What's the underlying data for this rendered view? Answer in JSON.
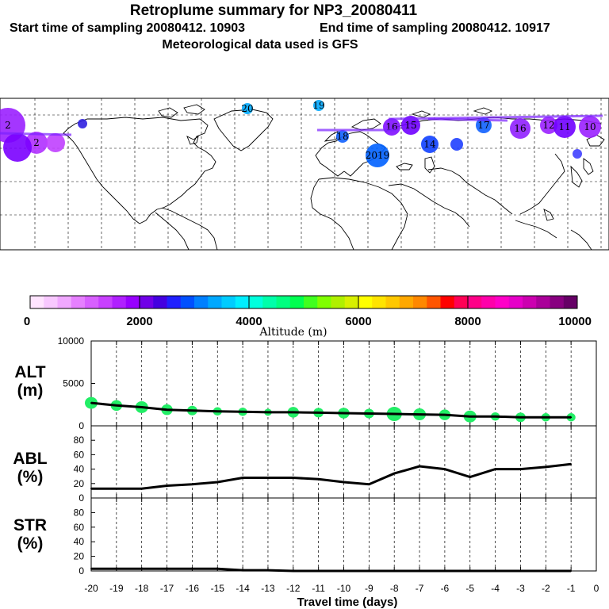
{
  "header": {
    "title": "Retroplume summary for NP3_20080411",
    "start_label": "Start time of sampling 20080412. 10903",
    "end_label": "End time of sampling 20080412. 10917",
    "met_label": "Meteorological data used is GFS"
  },
  "colorbar": {
    "colors": [
      "#ffe4ff",
      "#f8c8ff",
      "#f0a8ff",
      "#e680ff",
      "#d860ff",
      "#c840ff",
      "#b020ff",
      "#9800ff",
      "#7000e8",
      "#4400e0",
      "#2020ff",
      "#0050ff",
      "#0080ff",
      "#00a8ff",
      "#00ccff",
      "#00eeff",
      "#00ffdd",
      "#00ffaa",
      "#00ff80",
      "#00ff50",
      "#40ff20",
      "#80ff00",
      "#b0f000",
      "#d8f000",
      "#ffff00",
      "#ffe400",
      "#ffc800",
      "#ffa800",
      "#ff8800",
      "#ff5500",
      "#ff0000",
      "#ff0055",
      "#ff0088",
      "#ff00aa",
      "#ff00c8",
      "#e600c8",
      "#cc00b0",
      "#aa0099",
      "#880080",
      "#660066"
    ],
    "tick_labels": [
      "0",
      "2000",
      "4000",
      "6000",
      "8000",
      "10000"
    ],
    "label": "Altitude (m)"
  },
  "map": {
    "plume_points": [
      {
        "label": "2",
        "color": "#9a20ff",
        "size": 22
      },
      {
        "label": "2",
        "color": "#b030ff",
        "size": 14
      },
      {
        "label": "",
        "color": "#7a00ff",
        "size": 18
      },
      {
        "label": "",
        "color": "#c040ff",
        "size": 12
      },
      {
        "label": "",
        "color": "#3020e0",
        "size": 6
      },
      {
        "label": "20",
        "color": "#00a8ff",
        "size": 7
      },
      {
        "label": "19",
        "color": "#00a8ff",
        "size": 7
      },
      {
        "label": "18",
        "color": "#1060ff",
        "size": 8
      },
      {
        "label": "2019",
        "color": "#0060ff",
        "size": 15
      },
      {
        "label": "16",
        "color": "#8010ff",
        "size": 11
      },
      {
        "label": "15",
        "color": "#7000ff",
        "size": 12
      },
      {
        "label": "14",
        "color": "#1040ff",
        "size": 11
      },
      {
        "label": "17",
        "color": "#1060ff",
        "size": 10
      },
      {
        "label": "16",
        "color": "#9020ff",
        "size": 13
      },
      {
        "label": "12",
        "color": "#9a20ff",
        "size": 11
      },
      {
        "label": "11",
        "color": "#7000ff",
        "size": 14
      },
      {
        "label": "10",
        "color": "#9a20ff",
        "size": 14
      },
      {
        "label": "",
        "color": "#2040ff",
        "size": 8
      },
      {
        "label": "",
        "color": "#4040ff",
        "size": 6
      }
    ]
  },
  "panels": {
    "alt": {
      "label_1": "ALT",
      "label_2": "(m)"
    },
    "abl": {
      "label_1": "ABL",
      "label_2": "(%)"
    },
    "str": {
      "label_1": "STR",
      "label_2": "(%)"
    }
  },
  "chart_data": [
    {
      "type": "line",
      "title": "ALT (m)",
      "x": [
        -20,
        -19,
        -18,
        -17,
        -16,
        -15,
        -14,
        -13,
        -12,
        -11,
        -10,
        -9,
        -8,
        -7,
        -6,
        -5,
        -4,
        -3,
        -2,
        -1
      ],
      "values": [
        2700,
        2400,
        2200,
        1900,
        1800,
        1700,
        1650,
        1600,
        1600,
        1550,
        1500,
        1450,
        1400,
        1350,
        1300,
        1100,
        1100,
        1000,
        1000,
        1000
      ],
      "scatter_color": "#22ee66",
      "scatter_size": [
        10,
        9,
        10,
        9,
        8,
        7,
        7,
        6,
        9,
        8,
        9,
        8,
        12,
        10,
        9,
        10,
        7,
        8,
        7,
        7
      ],
      "xlim": [
        -20,
        0
      ],
      "ylim": [
        0,
        10000
      ],
      "yticks": [
        0,
        5000,
        10000
      ],
      "xlabel": "Travel time (days)",
      "ylabel": "ALT (m)"
    },
    {
      "type": "line",
      "title": "ABL (%)",
      "x": [
        -20,
        -19,
        -18,
        -17,
        -16,
        -15,
        -14,
        -13,
        -12,
        -11,
        -10,
        -9,
        -8,
        -7,
        -6,
        -5,
        -4,
        -3,
        -2,
        -1
      ],
      "values": [
        13,
        13,
        13,
        17,
        19,
        22,
        28,
        28,
        28,
        26,
        22,
        19,
        34,
        44,
        40,
        29,
        40,
        40,
        43,
        47
      ],
      "xlim": [
        -20,
        0
      ],
      "ylim": [
        0,
        100
      ],
      "yticks": [
        0,
        20,
        40,
        60,
        80
      ],
      "ylabel": "ABL (%)"
    },
    {
      "type": "line",
      "title": "STR (%)",
      "x": [
        -20,
        -19,
        -18,
        -17,
        -16,
        -15,
        -14,
        -13,
        -12,
        -11,
        -10,
        -9,
        -8,
        -7,
        -6,
        -5,
        -4,
        -3,
        -2,
        -1
      ],
      "values": [
        3,
        3,
        3,
        3,
        3,
        3,
        1,
        1,
        0,
        0,
        0,
        0,
        0,
        0,
        0,
        0,
        0,
        0,
        0,
        0
      ],
      "xlim": [
        -20,
        0
      ],
      "ylim": [
        0,
        100
      ],
      "yticks": [
        0,
        20,
        40,
        60,
        80
      ],
      "xticks": [
        "-20",
        "-19",
        "-18",
        "-17",
        "-16",
        "-15",
        "-14",
        "-13",
        "-12",
        "-11",
        "-10",
        "-9",
        "-8",
        "-7",
        "-6",
        "-5",
        "-4",
        "-3",
        "-2",
        "-1",
        "0"
      ],
      "xlabel": "Travel time (days)",
      "ylabel": "STR (%)"
    }
  ]
}
